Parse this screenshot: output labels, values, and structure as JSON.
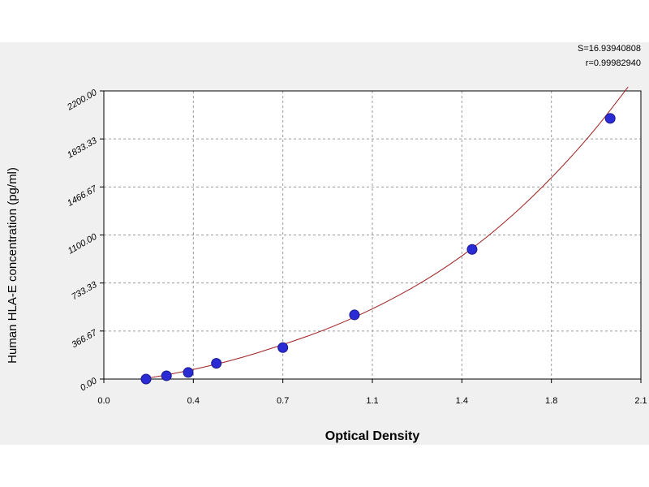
{
  "chart_data": {
    "type": "scatter",
    "title": "",
    "xlabel": "Optical Density",
    "ylabel": "Human HLA-E concentration (pg/ml)",
    "xlim": [
      0.0,
      2.1
    ],
    "ylim": [
      0.0,
      2200.0
    ],
    "x_ticks": [
      "0.0",
      "0.4",
      "0.7",
      "1.1",
      "1.4",
      "1.8",
      "2.1"
    ],
    "x_tick_values": [
      0.0,
      0.35,
      0.7,
      1.05,
      1.4,
      1.75,
      2.1
    ],
    "y_ticks": [
      "0.00",
      "366.67",
      "733.33",
      "1100.00",
      "1466.67",
      "1833.33",
      "2200.00"
    ],
    "y_tick_values": [
      0.0,
      366.67,
      733.33,
      1100.0,
      1466.67,
      1833.33,
      2200.0
    ],
    "grid": true,
    "series": [
      {
        "points": [
          {
            "x": 0.165,
            "y": 0
          },
          {
            "x": 0.245,
            "y": 25
          },
          {
            "x": 0.33,
            "y": 50
          },
          {
            "x": 0.44,
            "y": 120
          },
          {
            "x": 0.7,
            "y": 240
          },
          {
            "x": 0.98,
            "y": 490
          },
          {
            "x": 1.44,
            "y": 990
          },
          {
            "x": 1.98,
            "y": 1990
          }
        ],
        "color": "#2b2bd6"
      }
    ],
    "fit_curve": {
      "color": "#a02020",
      "points": [
        {
          "x": 0.15,
          "y": 0
        },
        {
          "x": 0.3,
          "y": 50
        },
        {
          "x": 0.5,
          "y": 140
        },
        {
          "x": 0.7,
          "y": 260
        },
        {
          "x": 0.9,
          "y": 400
        },
        {
          "x": 1.1,
          "y": 580
        },
        {
          "x": 1.3,
          "y": 800
        },
        {
          "x": 1.5,
          "y": 1080
        },
        {
          "x": 1.7,
          "y": 1430
        },
        {
          "x": 1.9,
          "y": 1850
        },
        {
          "x": 2.05,
          "y": 2230
        }
      ]
    },
    "annotations": {
      "s": "S=16.93940808",
      "r": "r=0.99982940"
    }
  }
}
